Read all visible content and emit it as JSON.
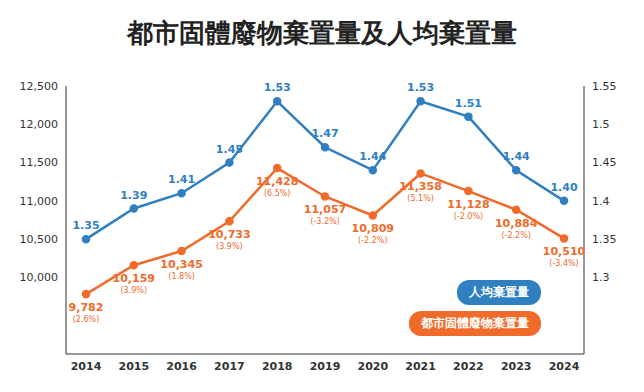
{
  "chart_data": {
    "type": "line",
    "title": "都市固體廢物棄置量及人均棄置量",
    "categories": [
      "2014",
      "2015",
      "2016",
      "2017",
      "2018",
      "2019",
      "2020",
      "2021",
      "2022",
      "2023",
      "2024"
    ],
    "series": [
      {
        "name": "人均棄置量",
        "color": "#2f7fc1",
        "axis": "y2",
        "marker": "circle",
        "values": [
          1.35,
          1.39,
          1.41,
          1.45,
          1.53,
          1.47,
          1.44,
          1.53,
          1.51,
          1.44,
          1.4
        ],
        "value_labels": [
          "1.35",
          "1.39",
          "1.41",
          "1.45",
          "1.53",
          "1.47",
          "1.44",
          "1.53",
          "1.51",
          "1.44",
          "1.40"
        ]
      },
      {
        "name": "都市固體廢物棄置量",
        "color": "#f06a2a",
        "axis": "y",
        "marker": "circle",
        "values": [
          9782,
          10159,
          10345,
          10733,
          11428,
          11057,
          10809,
          11358,
          11128,
          10884,
          10510
        ],
        "value_labels": [
          "9,782",
          "10,159",
          "10,345",
          "10,733",
          "11,428",
          "11,057",
          "10,809",
          "11,358",
          "11,128",
          "10,884",
          "10,510"
        ],
        "change_labels": [
          "(2.6%)",
          "(3.9%)",
          "(1.8%)",
          "(3.9%)",
          "(6.5%)",
          "(-3.2%)",
          "(-2.2%)",
          "(5.1%)",
          "(-2.0%)",
          "(-2.2%)",
          "(-3.4%)"
        ]
      }
    ],
    "ylim": [
      9000,
      12500
    ],
    "yticks": [
      {
        "value": 10000,
        "label": "10,000"
      },
      {
        "value": 10500,
        "label": "10,500"
      },
      {
        "value": 11000,
        "label": "11,000"
      },
      {
        "value": 11500,
        "label": "11,500"
      },
      {
        "value": 12000,
        "label": "12,000"
      },
      {
        "value": 12500,
        "label": "12,500"
      }
    ],
    "y2lim": [
      1.2,
      1.55
    ],
    "y2ticks": [
      1.3,
      1.35,
      1.4,
      1.45,
      1.5,
      1.55
    ],
    "data_labels": true,
    "grid": false,
    "legend": "lower right"
  }
}
